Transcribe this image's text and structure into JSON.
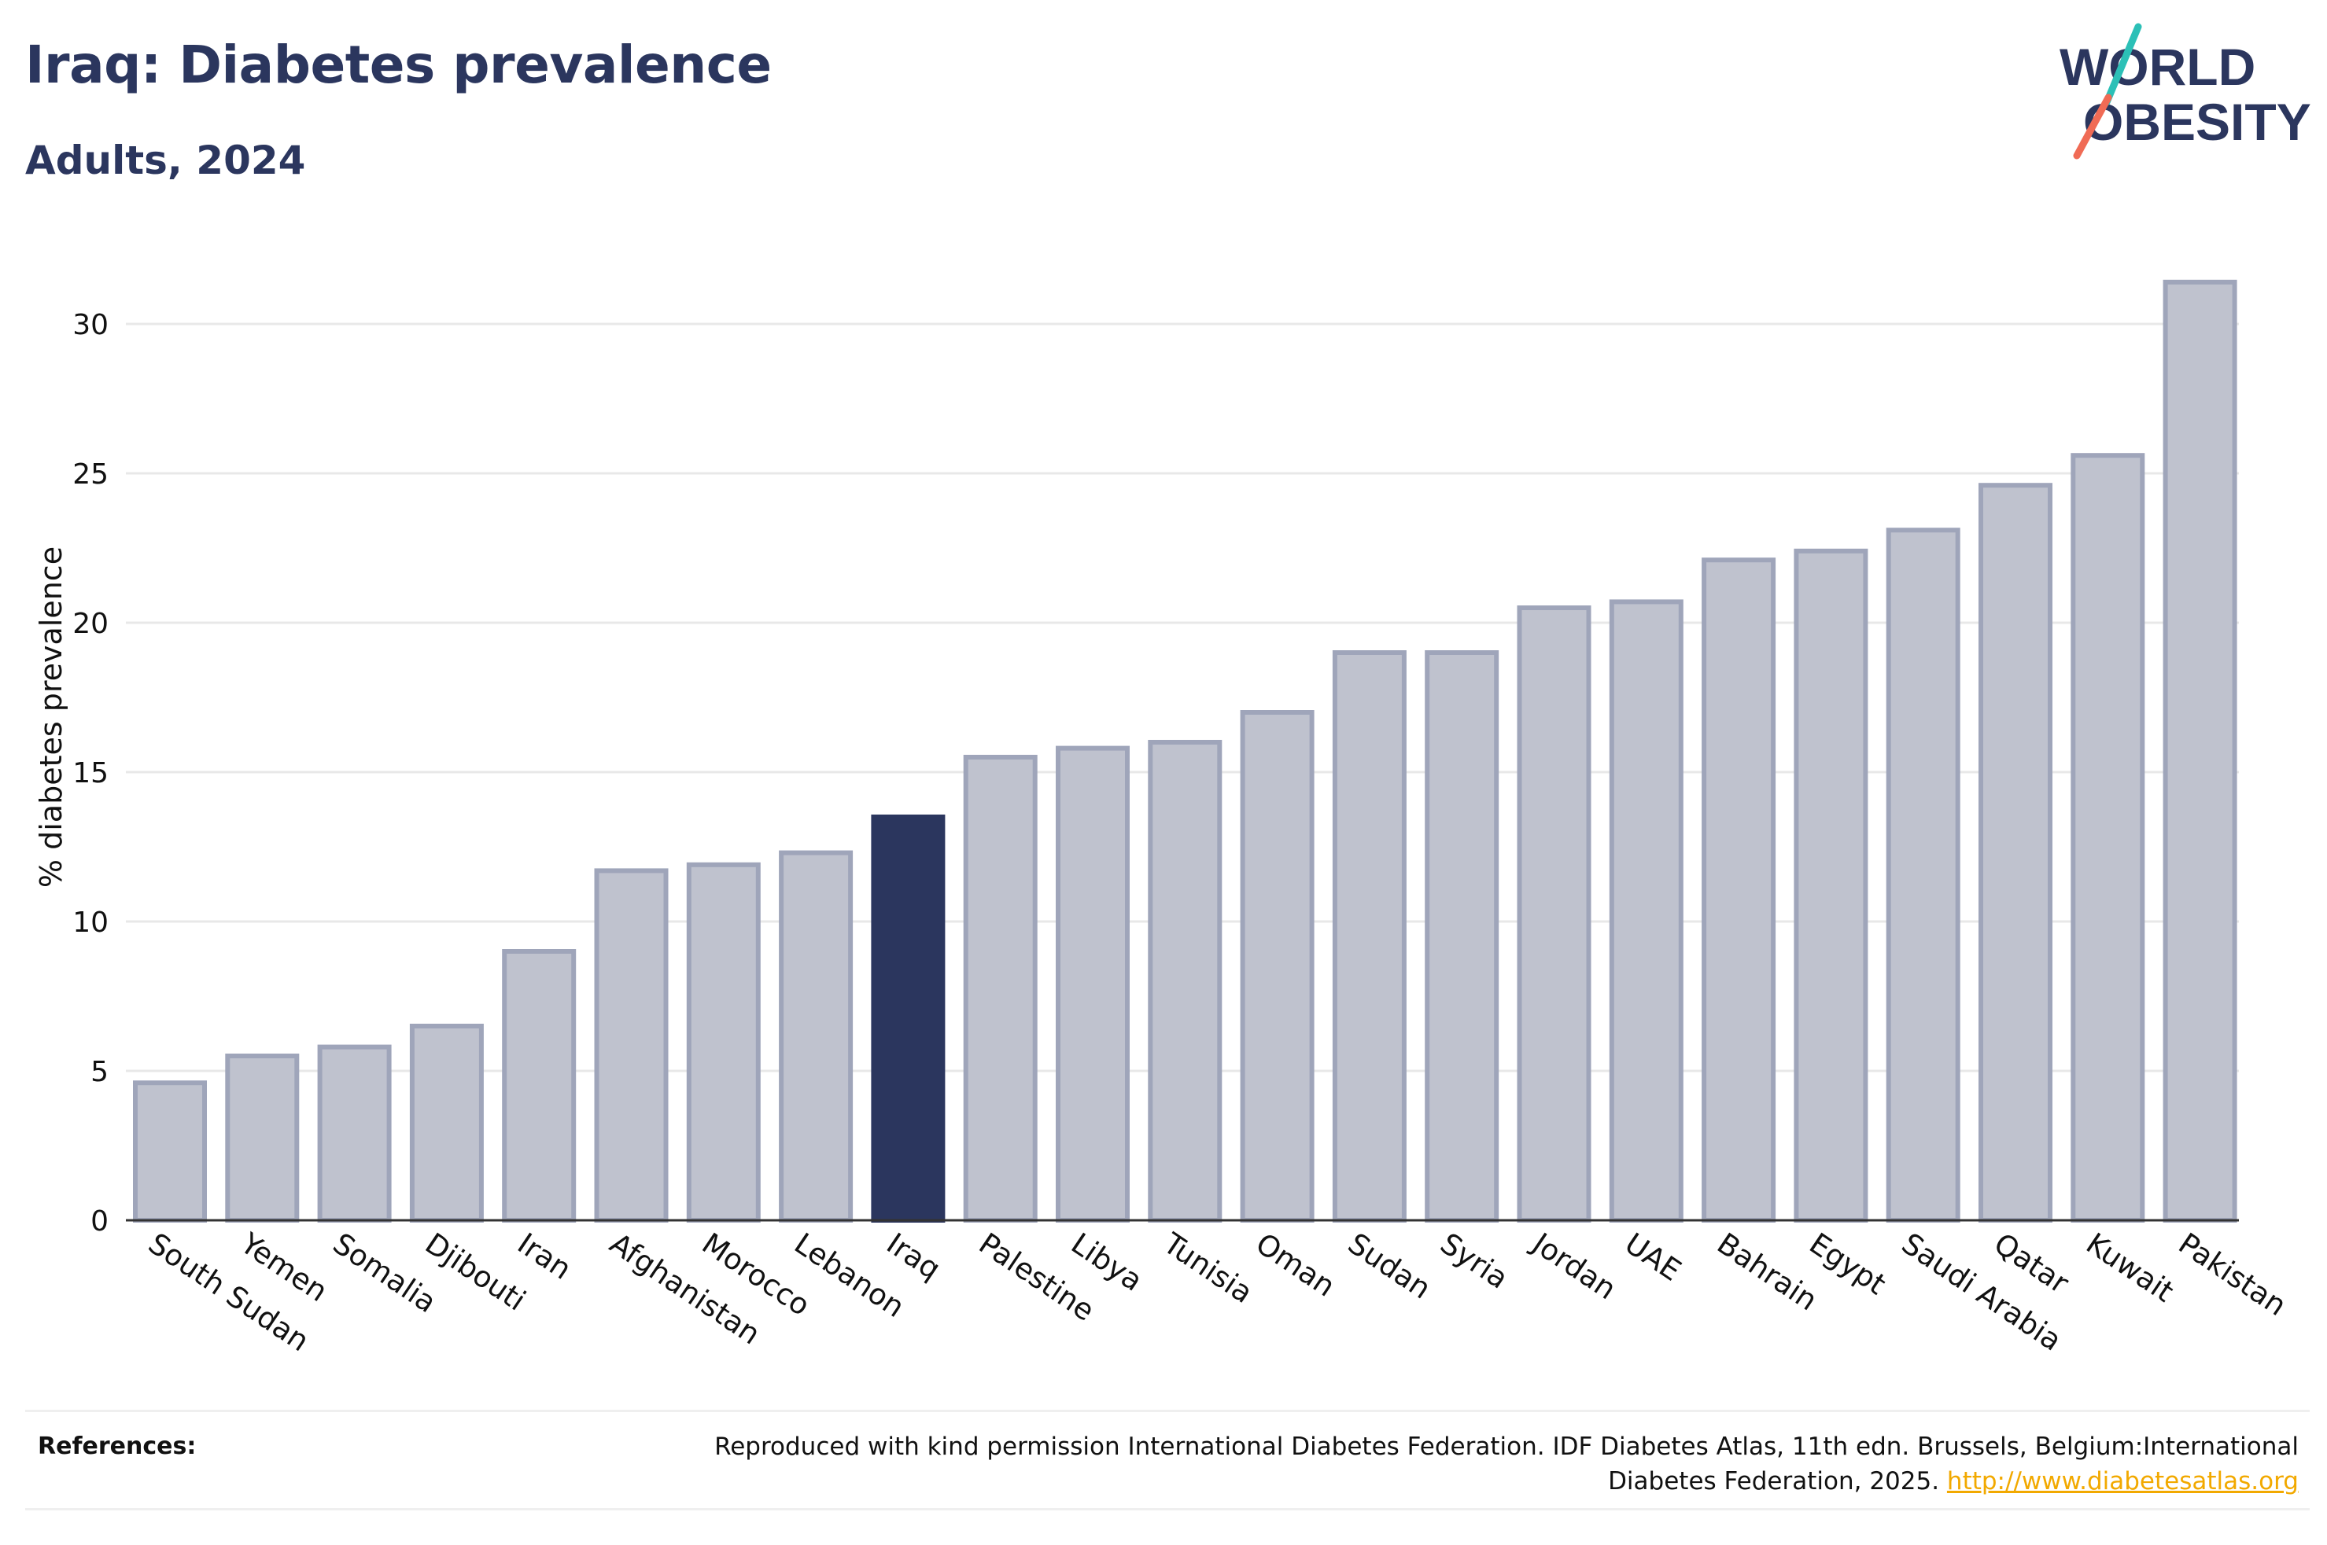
{
  "header": {
    "title": "Iraq: Diabetes prevalence",
    "subtitle": "Adults, 2024"
  },
  "logo": {
    "line1": "WORLD",
    "line2": "OBESITY",
    "text_color": "#2b365e",
    "slash_top_color": "#2cc0b7",
    "slash_bottom_color": "#f06b55"
  },
  "colors": {
    "bar_default": "#bfc2ce",
    "bar_border": "#9fa5ba",
    "bar_highlight": "#2b365e",
    "grid": "#e8e8e8",
    "axis": "#333333",
    "link": "#f2a900"
  },
  "chart_data": {
    "type": "bar",
    "categories": [
      "South Sudan",
      "Yemen",
      "Somalia",
      "Djibouti",
      "Iran",
      "Afghanistan",
      "Morocco",
      "Lebanon",
      "Iraq",
      "Palestine",
      "Libya",
      "Tunisia",
      "Oman",
      "Sudan",
      "Syria",
      "Jordan",
      "UAE",
      "Bahrain",
      "Egypt",
      "Saudi Arabia",
      "Qatar",
      "Kuwait",
      "Pakistan"
    ],
    "values": [
      4.6,
      5.5,
      5.8,
      6.5,
      9.0,
      11.7,
      11.9,
      12.3,
      13.5,
      15.5,
      15.8,
      16.0,
      17.0,
      19.0,
      19.0,
      20.5,
      20.7,
      22.1,
      22.4,
      23.1,
      24.6,
      25.6,
      31.4
    ],
    "highlight": "Iraq",
    "title": "",
    "xlabel": "",
    "ylabel": "% diabetes prevalence",
    "ylim": [
      0,
      32
    ],
    "yticks": [
      0,
      5,
      10,
      15,
      20,
      25,
      30
    ],
    "grid": true
  },
  "references": {
    "label": "References:",
    "text": "Reproduced with kind permission International Diabetes Federation. IDF Diabetes Atlas, 11th edn. Brussels, Belgium:International Diabetes Federation, 2025.",
    "link_text": "http://www.diabetesatlas.org"
  }
}
